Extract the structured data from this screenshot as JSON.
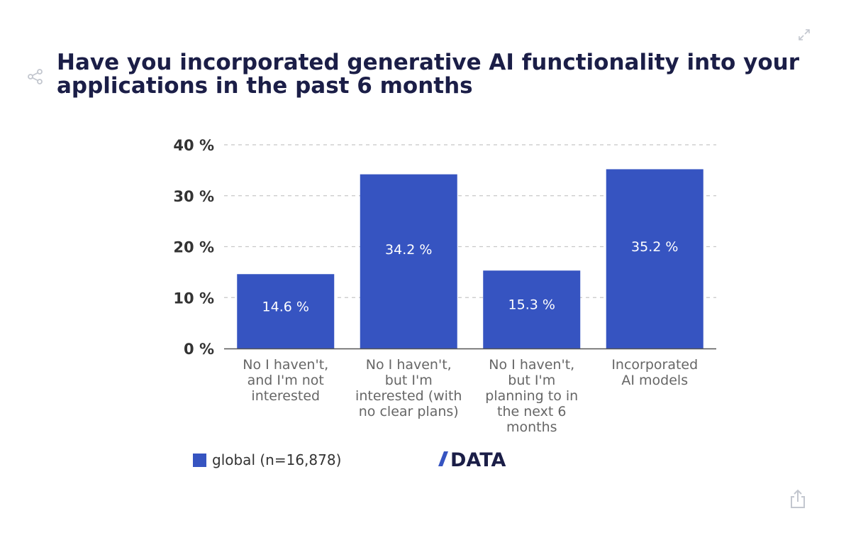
{
  "title": "Have you incorporated generative AI functionality into your applications in the past 6 months",
  "colors": {
    "bar": "#3654c1",
    "title": "#1b1e47",
    "grid": "#c8c8c8",
    "axis": "#555555",
    "tick": "#333333",
    "category": "#666666",
    "bar_label": "#ffffff",
    "icon": "#c3c7cf",
    "logo": "#1b1e47",
    "logo_accent": "#3654c1"
  },
  "icons": {
    "share": "share-icon",
    "expand": "expand-icon",
    "export": "export-icon"
  },
  "legend": {
    "label": "global (n=16,878)"
  },
  "logo": {
    "text": "DATA"
  },
  "chart_data": {
    "type": "bar",
    "title": "Have you incorporated generative AI functionality into your applications in the past 6 months",
    "xlabel": "",
    "ylabel": "",
    "ylim": [
      0,
      40
    ],
    "yticks": [
      0,
      10,
      20,
      30,
      40
    ],
    "ytick_labels": [
      "0 %",
      "10 %",
      "20 %",
      "30 %",
      "40 %"
    ],
    "grid": true,
    "legend_position": "bottom-left",
    "categories": [
      [
        "No I haven't,",
        "and I'm not",
        "interested"
      ],
      [
        "No I haven't,",
        "but I'm",
        "interested (with",
        "no clear plans)"
      ],
      [
        "No I haven't,",
        "but I'm",
        "planning to in",
        "the next 6",
        "months"
      ],
      [
        "Incorporated",
        "AI models"
      ]
    ],
    "series": [
      {
        "name": "global (n=16,878)",
        "values": [
          14.6,
          34.2,
          15.3,
          35.2
        ],
        "labels": [
          "14.6 %",
          "34.2 %",
          "15.3 %",
          "35.2 %"
        ]
      }
    ]
  }
}
